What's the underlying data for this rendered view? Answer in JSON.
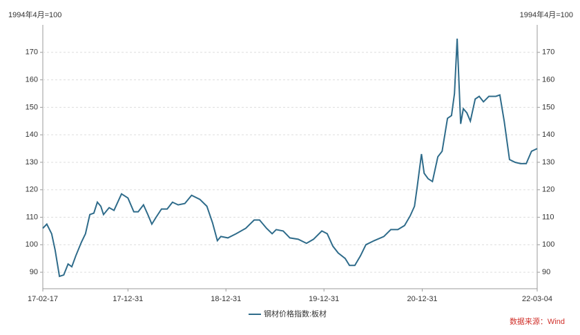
{
  "chart_data": {
    "type": "line",
    "y_axis_label": "1994年4月=100",
    "y2_axis_label": "1994年4月=100",
    "source": "数据来源：Wind",
    "x": [
      "17-02-17",
      "17-03-04",
      "17-03-22",
      "17-04-04",
      "17-04-20",
      "17-05-06",
      "17-05-22",
      "17-06-05",
      "17-06-20",
      "17-07-11",
      "17-07-26",
      "17-08-11",
      "17-08-26",
      "17-09-08",
      "17-09-21",
      "17-10-01",
      "17-10-22",
      "17-11-09",
      "17-12-07",
      "17-12-31",
      "18-01-22",
      "18-02-07",
      "18-02-27",
      "18-03-15",
      "18-03-30",
      "18-04-15",
      "18-05-05",
      "18-05-26",
      "18-06-15",
      "18-07-06",
      "18-07-31",
      "18-08-25",
      "18-09-25",
      "18-10-21",
      "18-11-11",
      "18-11-29",
      "18-12-12",
      "19-01-07",
      "19-02-07",
      "19-03-15",
      "19-04-15",
      "19-05-05",
      "19-05-31",
      "19-06-21",
      "19-07-06",
      "19-08-01",
      "19-08-26",
      "19-09-26",
      "19-10-27",
      "19-11-22",
      "19-12-23",
      "20-01-12",
      "20-02-02",
      "20-02-22",
      "20-03-19",
      "20-04-04",
      "20-04-24",
      "20-05-15",
      "20-06-04",
      "20-07-05",
      "20-08-10",
      "20-09-05",
      "20-10-01",
      "20-10-26",
      "20-11-16",
      "20-12-02",
      "20-12-12",
      "20-12-28",
      "21-01-07",
      "21-01-22",
      "21-02-07",
      "21-02-27",
      "21-03-15",
      "21-04-04",
      "21-04-19",
      "21-04-30",
      "21-05-10",
      "21-05-23",
      "21-06-02",
      "21-06-15",
      "21-06-28",
      "21-07-16",
      "21-07-31",
      "21-08-16",
      "21-09-05",
      "21-10-01",
      "21-10-16",
      "21-11-01",
      "21-11-21",
      "21-12-12",
      "22-01-01",
      "22-01-22",
      "22-02-11",
      "22-03-04"
    ],
    "series": [
      {
        "name": "钢材价格指数:板材",
        "color": "#2e6b8a",
        "values": [
          106,
          107.5,
          104,
          98,
          88.5,
          89,
          93,
          92,
          96,
          101,
          104,
          111,
          111.5,
          115.5,
          114,
          111,
          113.5,
          112.5,
          118.5,
          117,
          112,
          112,
          114.5,
          111,
          107.5,
          110,
          113,
          113,
          115.5,
          114.5,
          115,
          118,
          116.5,
          114,
          108,
          101.5,
          103,
          102.5,
          104,
          106,
          109,
          109,
          106,
          104,
          105.5,
          105,
          102.5,
          102,
          100.5,
          102,
          105,
          104,
          99.5,
          97,
          95,
          92.5,
          92.5,
          96,
          100,
          101.5,
          103,
          105.5,
          105.5,
          107,
          110.5,
          114,
          121,
          133,
          126,
          124,
          123,
          132,
          134,
          146,
          147,
          155,
          175,
          144,
          149.5,
          148,
          145,
          153,
          154,
          152,
          154,
          154,
          154.5,
          145,
          131,
          130,
          129.5,
          129.5,
          134,
          135
        ]
      }
    ],
    "xlim": [
      "17-02-17",
      "22-03-04"
    ],
    "xticks": [
      "17-02-17",
      "17-12-31",
      "18-12-31",
      "19-12-31",
      "20-12-31",
      "22-03-04"
    ],
    "ylim": [
      84,
      180
    ],
    "yticks": [
      90,
      100,
      110,
      120,
      130,
      140,
      150,
      160,
      170
    ],
    "y2lim": [
      84,
      180
    ],
    "y2ticks": [
      90,
      100,
      110,
      120,
      130,
      140,
      150,
      160,
      170
    ],
    "grid": true
  }
}
